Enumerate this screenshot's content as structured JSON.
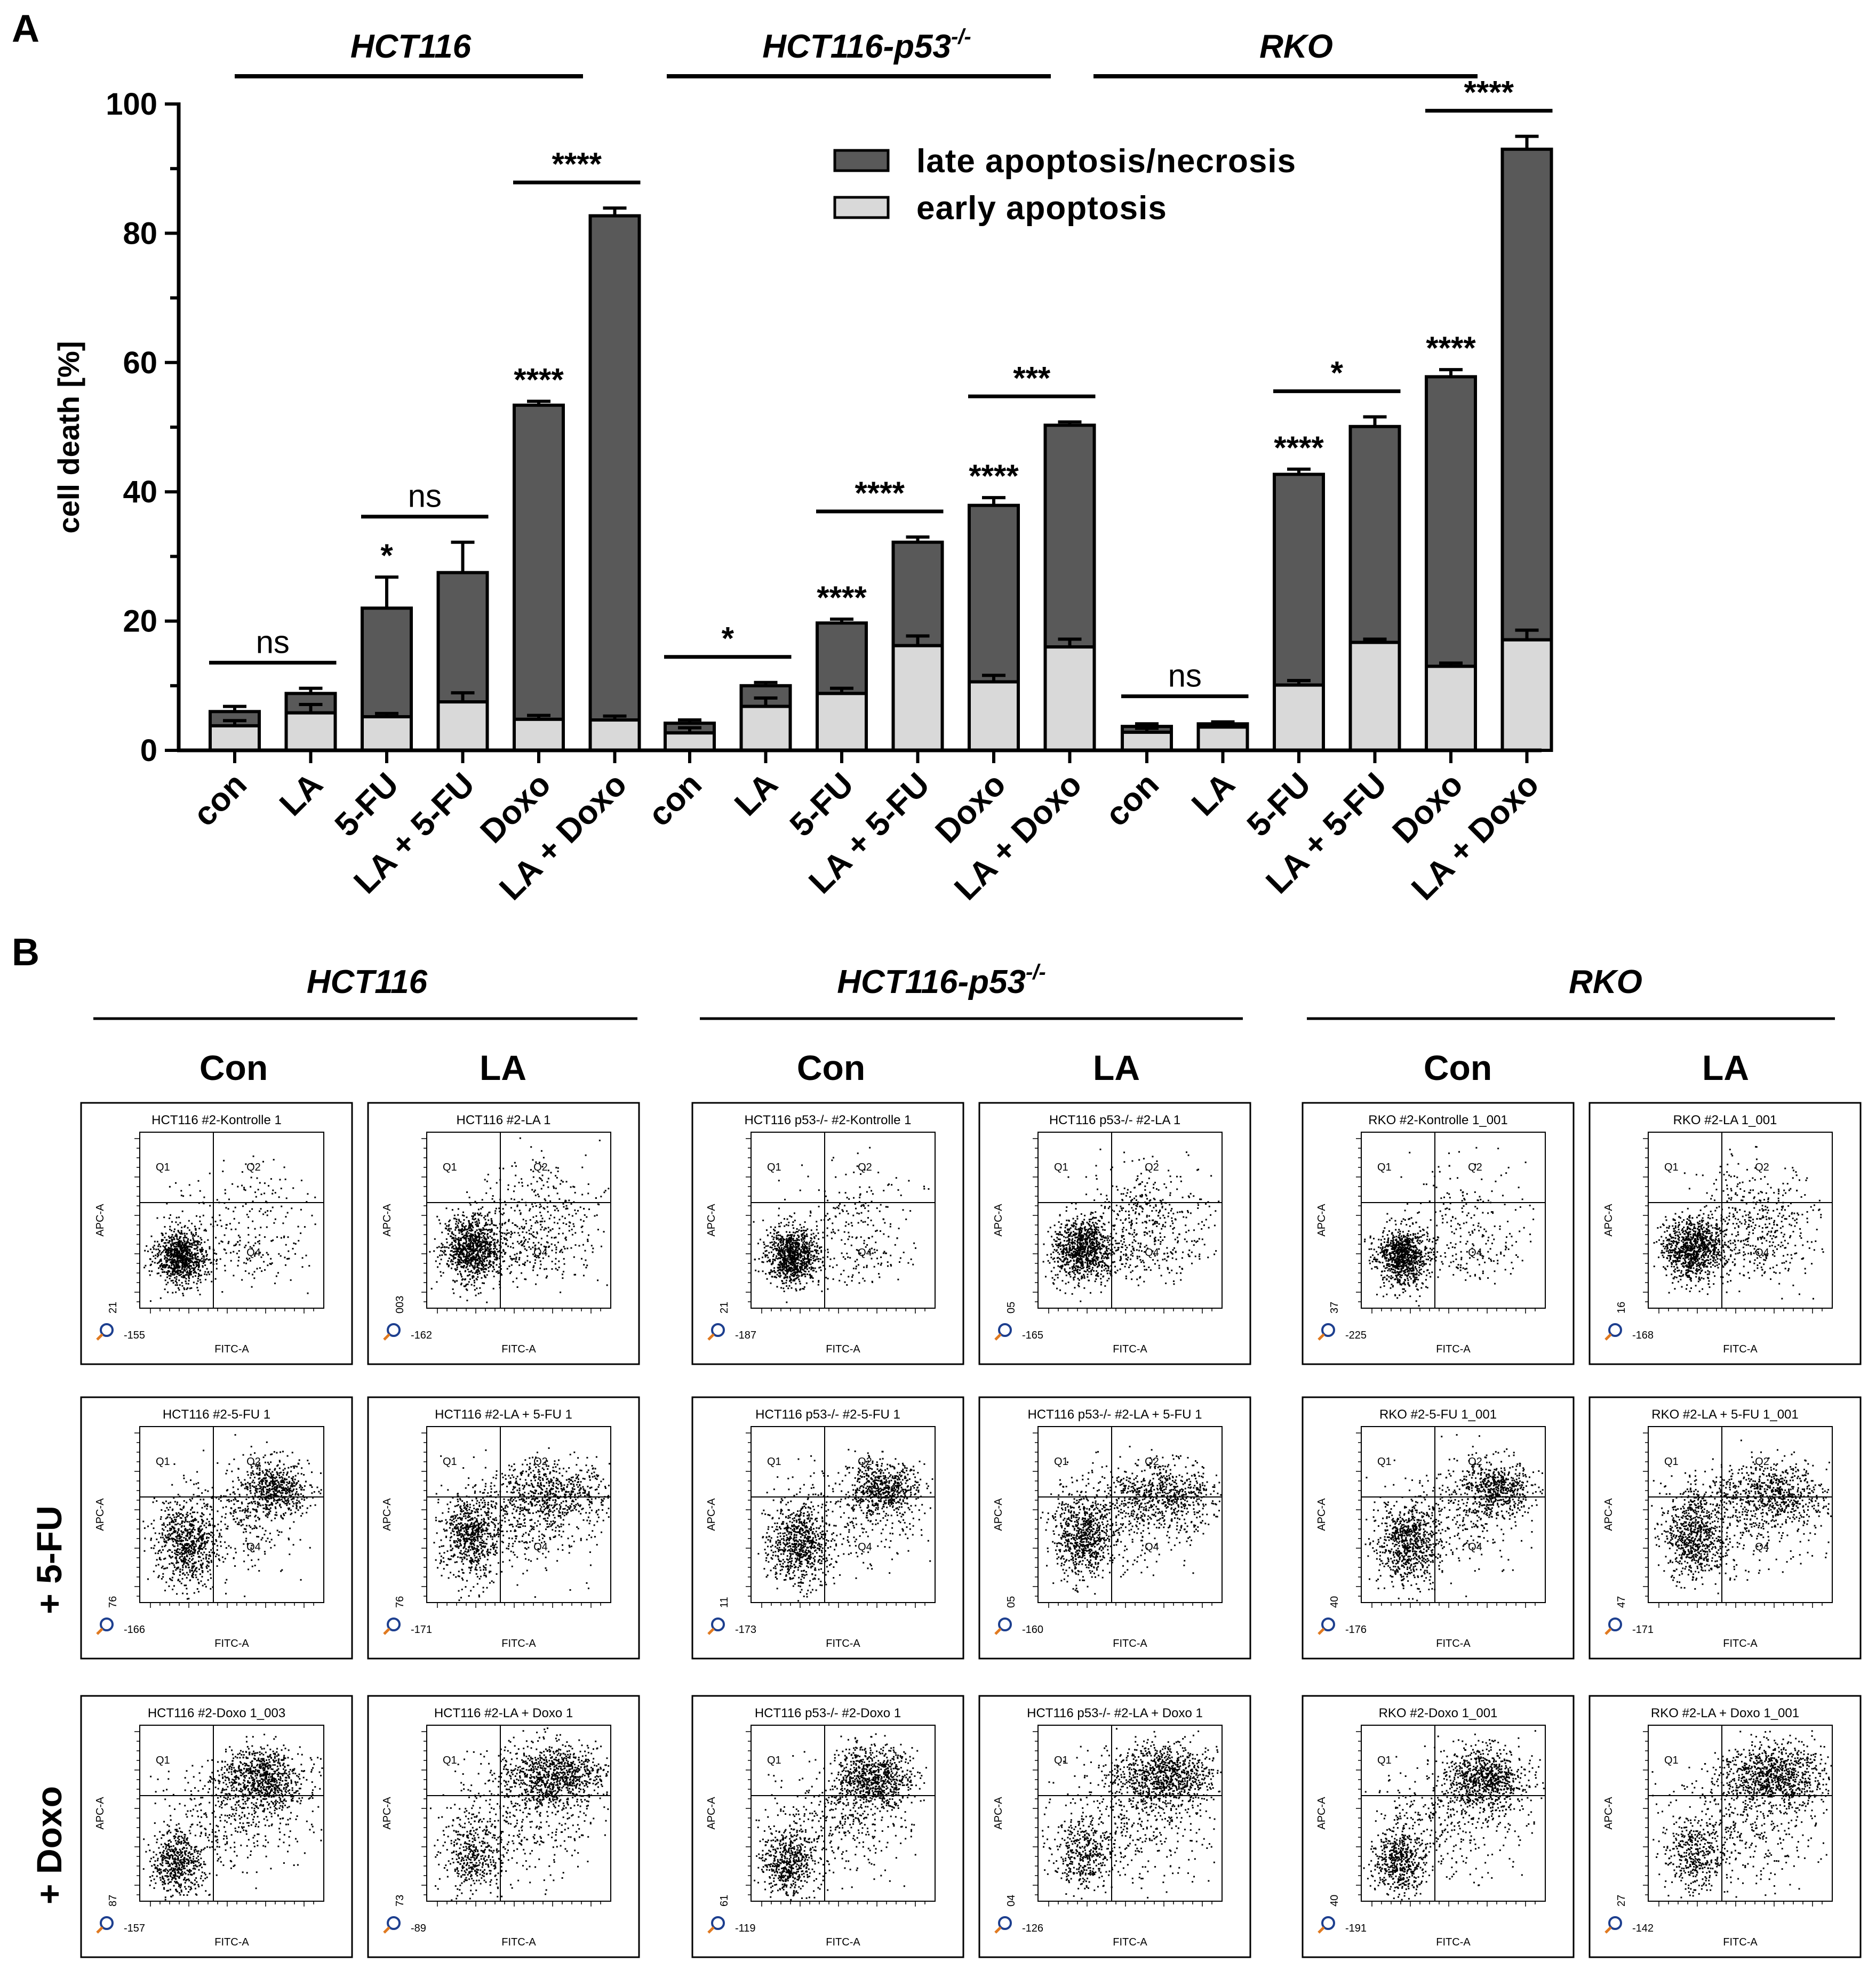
{
  "panel_a_label": "A",
  "panel_b_label": "B",
  "chart_data": {
    "type": "bar",
    "stacked": true,
    "title": "",
    "xlabel": "",
    "ylabel": "cell death [%]",
    "ylim": [
      0,
      100
    ],
    "yticks": [
      "0",
      "20",
      "40",
      "60",
      "80",
      "100"
    ],
    "legend_position": "top-right",
    "groups": [
      "HCT116",
      "HCT116-p53-/-",
      "RKO"
    ],
    "group_superscript": "-/-",
    "categories": [
      "con",
      "LA",
      "5-FU",
      "LA + 5-FU",
      "Doxo",
      "LA + Doxo",
      "con",
      "LA",
      "5-FU",
      "LA + 5-FU",
      "Doxo",
      "LA + Doxo",
      "con",
      "LA",
      "5-FU",
      "LA + 5-FU",
      "Doxo",
      "LA + Doxo"
    ],
    "series": [
      {
        "name": "early apoptosis",
        "color": "#d9d9d9",
        "values": [
          3.8,
          5.8,
          5.2,
          7.5,
          4.8,
          4.7,
          2.7,
          6.8,
          8.8,
          16.2,
          10.6,
          16.0,
          2.8,
          3.6,
          10.1,
          16.7,
          13.0,
          17.1
        ],
        "err": [
          0.8,
          1.3,
          0.5,
          1.4,
          0.6,
          0.6,
          0.8,
          1.3,
          0.8,
          1.5,
          1.0,
          1.2,
          0.6,
          0.4,
          0.7,
          0.5,
          0.5,
          1.5
        ]
      },
      {
        "name": "late apoptosis/necrosis",
        "color": "#595959",
        "values": [
          2.2,
          3.0,
          16.8,
          20.0,
          48.6,
          78.0,
          1.5,
          3.2,
          10.9,
          16.0,
          27.3,
          34.3,
          0.9,
          0.5,
          32.6,
          33.4,
          44.8,
          75.9
        ],
        "err": [
          0.8,
          0.8,
          4.8,
          4.7,
          0.6,
          1.2,
          0.5,
          0.5,
          0.6,
          0.8,
          1.2,
          0.5,
          0.4,
          0.3,
          0.8,
          1.5,
          1.1,
          2.0
        ]
      }
    ],
    "significance": [
      {
        "label": "ns",
        "bracket": [
          0,
          1
        ]
      },
      {
        "label": "*",
        "bar": 2
      },
      {
        "label": "ns",
        "bracket": [
          2,
          3
        ]
      },
      {
        "label": "****",
        "bar": 4
      },
      {
        "label": "****",
        "bracket": [
          4,
          5
        ]
      },
      {
        "label": "*",
        "bracket": [
          6,
          7
        ]
      },
      {
        "label": "****",
        "bar": 8
      },
      {
        "label": "****",
        "bracket": [
          8,
          9
        ]
      },
      {
        "label": "****",
        "bar": 10
      },
      {
        "label": "***",
        "bracket": [
          10,
          11
        ]
      },
      {
        "label": "ns",
        "bracket": [
          12,
          13
        ]
      },
      {
        "label": "****",
        "bar": 14
      },
      {
        "label": "*",
        "bracket": [
          14,
          15
        ]
      },
      {
        "label": "****",
        "bar": 16
      },
      {
        "label": "****",
        "bracket": [
          16,
          17
        ]
      }
    ]
  },
  "flow_panels": {
    "groups": [
      "HCT116",
      "HCT116-p53-/-",
      "RKO"
    ],
    "columns": [
      "Con",
      "LA"
    ],
    "rows": [
      "",
      "+ 5-FU",
      "+ Doxo"
    ],
    "x_axis_label": "FITC-A",
    "y_axis_label": "APC-A",
    "quadrants": [
      "Q1",
      "Q2",
      "Q4"
    ],
    "plots": [
      {
        "title": "HCT116 #2-Kontrolle 1",
        "xmin": "-155",
        "ymin": "21",
        "pattern": 0
      },
      {
        "title": "HCT116 #2-LA 1",
        "xmin": "-162",
        "ymin": "003",
        "pattern": 1
      },
      {
        "title": "HCT116 p53-/- #2-Kontrolle 1",
        "xmin": "-187",
        "ymin": "21",
        "pattern": 0
      },
      {
        "title": "HCT116 p53-/- #2-LA 1",
        "xmin": "-165",
        "ymin": "05",
        "pattern": 1
      },
      {
        "title": "RKO #2-Kontrolle 1_001",
        "xmin": "-225",
        "ymin": "37",
        "pattern": 0
      },
      {
        "title": "RKO #2-LA 1_001",
        "xmin": "-168",
        "ymin": "16",
        "pattern": 1
      },
      {
        "title": "HCT116 #2-5-FU 1",
        "xmin": "-166",
        "ymin": "76",
        "pattern": 2
      },
      {
        "title": "HCT116 #2-LA + 5-FU 1",
        "xmin": "-171",
        "ymin": "76",
        "pattern": 3
      },
      {
        "title": "HCT116 p53-/- #2-5-FU 1",
        "xmin": "-173",
        "ymin": "11",
        "pattern": 2
      },
      {
        "title": "HCT116 p53-/- #2-LA + 5-FU 1",
        "xmin": "-160",
        "ymin": "05",
        "pattern": 3
      },
      {
        "title": "RKO #2-5-FU 1_001",
        "xmin": "-176",
        "ymin": "40",
        "pattern": 2
      },
      {
        "title": "RKO #2-LA + 5-FU 1_001",
        "xmin": "-171",
        "ymin": "47",
        "pattern": 3
      },
      {
        "title": "HCT116 #2-Doxo 1_003",
        "xmin": "-157",
        "ymin": "87",
        "pattern": 4
      },
      {
        "title": "HCT116 #2-LA + Doxo 1",
        "xmin": "-89",
        "ymin": "73",
        "pattern": 5
      },
      {
        "title": "HCT116 p53-/- #2-Doxo 1",
        "xmin": "-119",
        "ymin": "61",
        "pattern": 4
      },
      {
        "title": "HCT116 p53-/- #2-LA + Doxo 1",
        "xmin": "-126",
        "ymin": "04",
        "pattern": 5
      },
      {
        "title": "RKO #2-Doxo 1_001",
        "xmin": "-191",
        "ymin": "40",
        "pattern": 4
      },
      {
        "title": "RKO #2-LA + Doxo 1_001",
        "xmin": "-142",
        "ymin": "27",
        "pattern": 5
      }
    ]
  }
}
